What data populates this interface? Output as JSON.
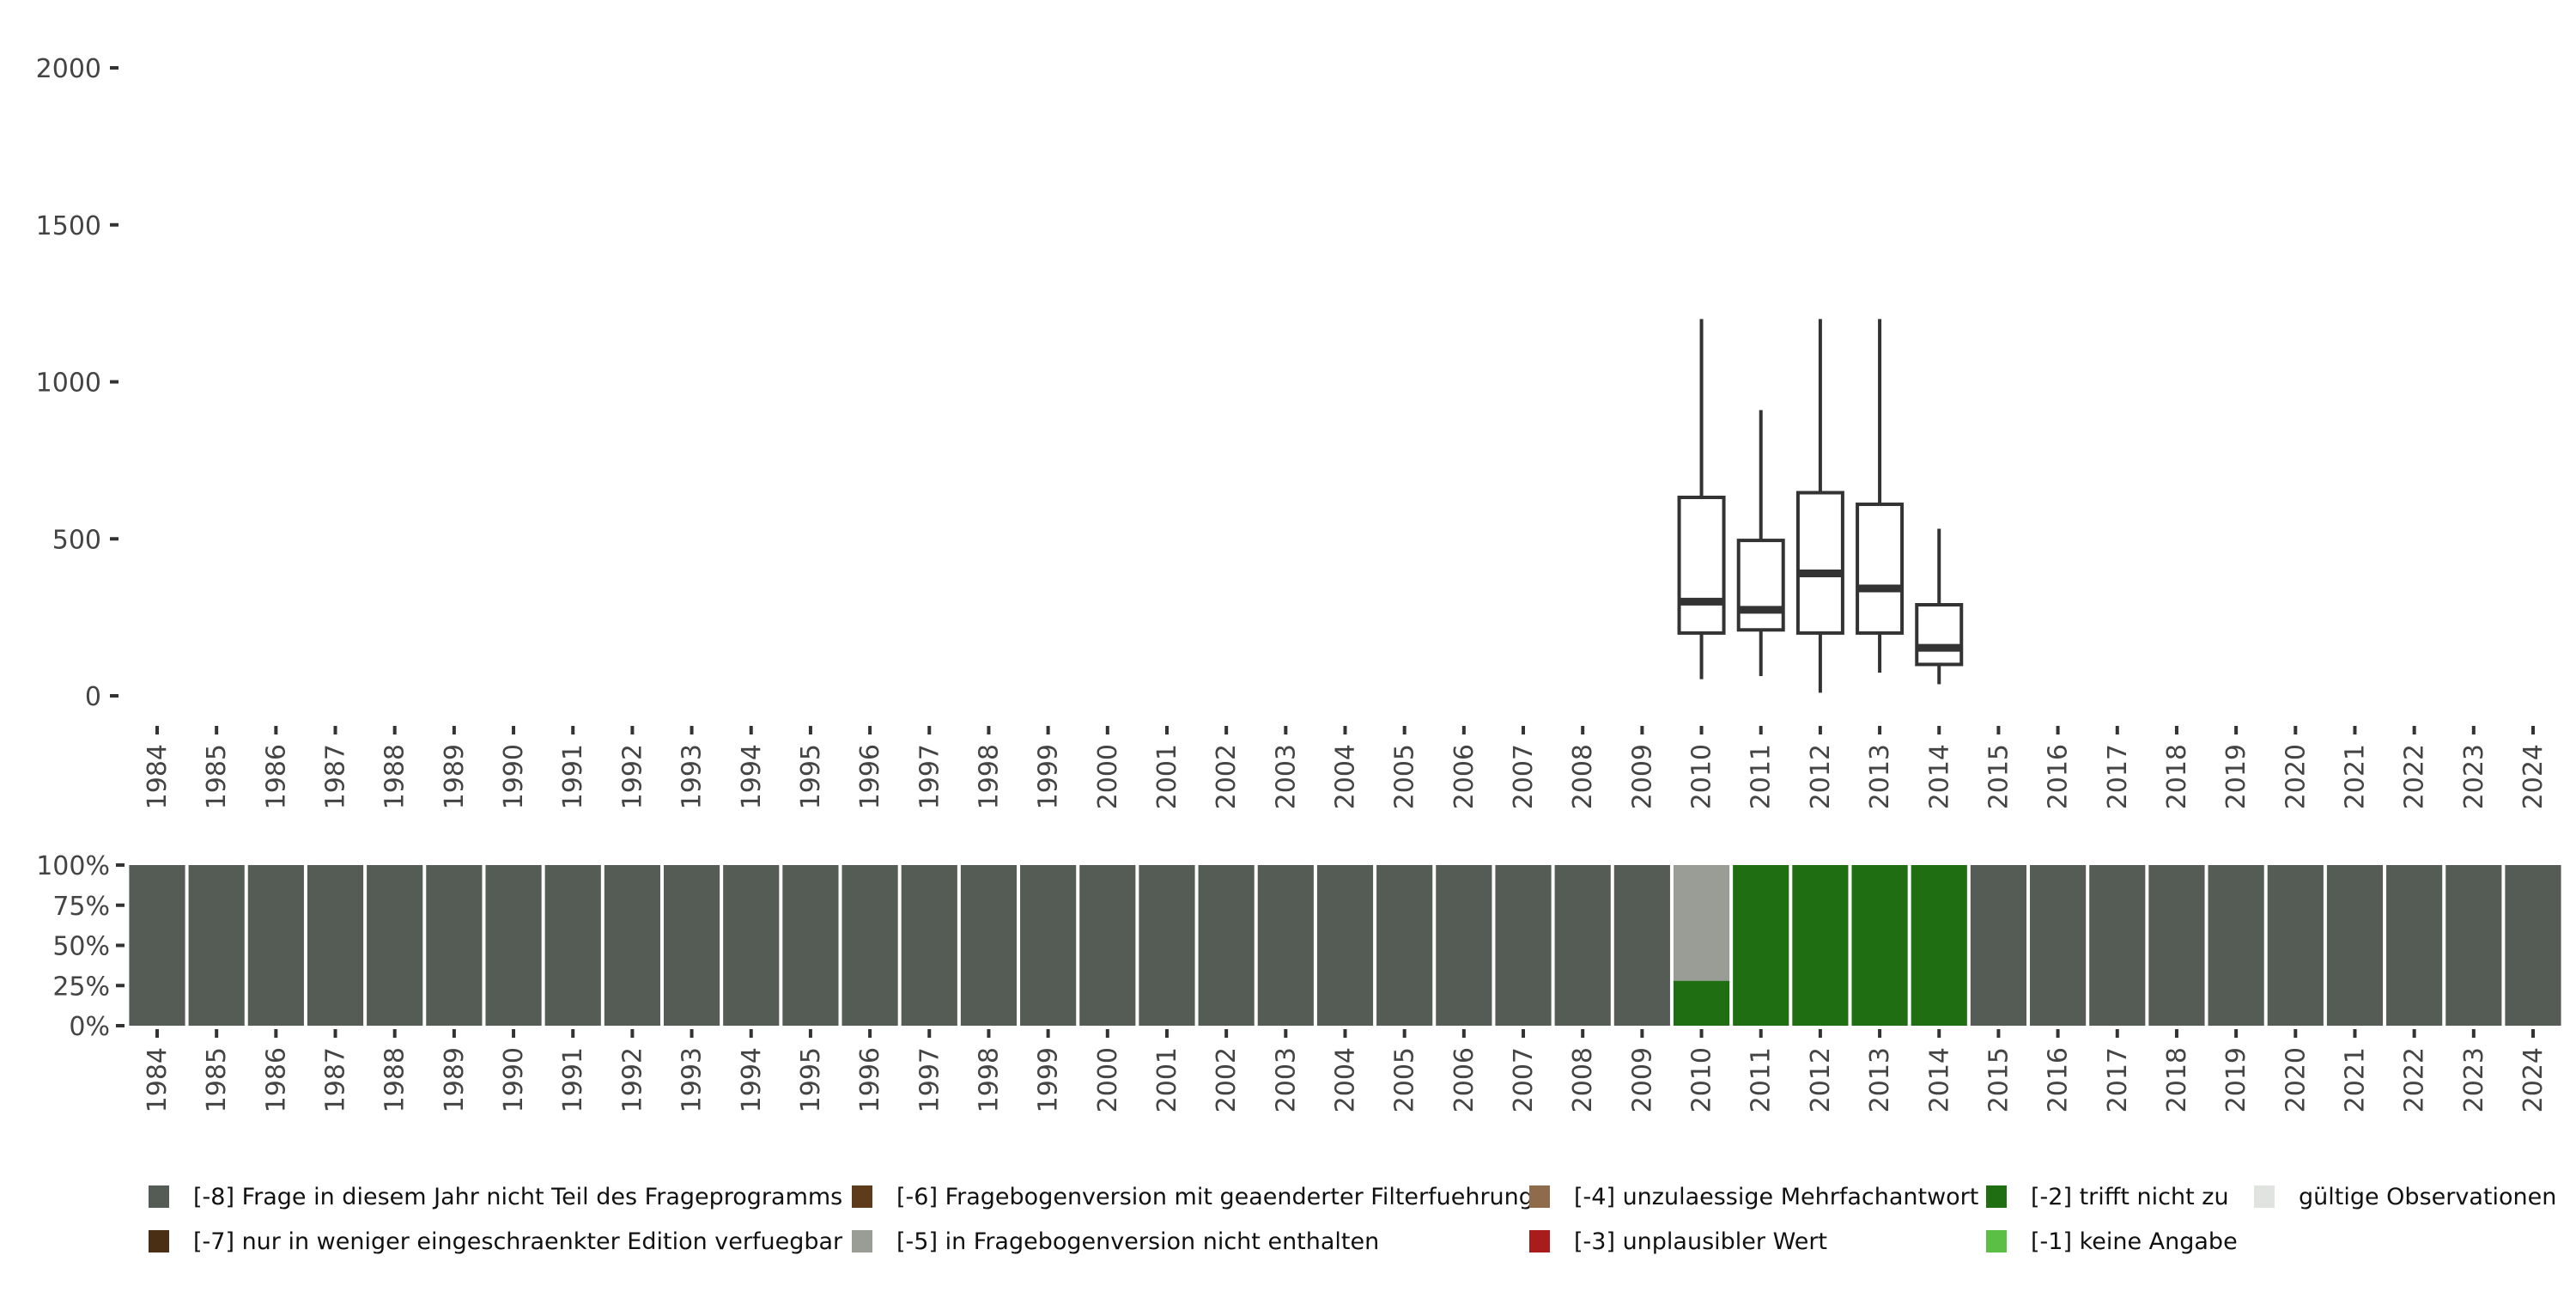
{
  "chart_data": [
    {
      "type": "boxplot",
      "title": "",
      "xlabel": "",
      "ylabel": "",
      "ylim": [
        0,
        2000
      ],
      "y_ticks": [
        "0",
        "500",
        "1000",
        "1500",
        "2000"
      ],
      "y_tick_values": [
        0,
        500,
        1000,
        1500,
        2000
      ],
      "categories": [
        "1984",
        "1985",
        "1986",
        "1987",
        "1988",
        "1989",
        "1990",
        "1991",
        "1992",
        "1993",
        "1994",
        "1995",
        "1996",
        "1997",
        "1998",
        "1999",
        "2000",
        "2001",
        "2002",
        "2003",
        "2004",
        "2005",
        "2006",
        "2007",
        "2008",
        "2009",
        "2010",
        "2011",
        "2012",
        "2013",
        "2014",
        "2015",
        "2016",
        "2017",
        "2018",
        "2019",
        "2020",
        "2021",
        "2022",
        "2023",
        "2024"
      ],
      "boxes": [
        {
          "year": "2010",
          "low": 53,
          "q1": 200,
          "median": 300,
          "q3": 632,
          "high": 1200
        },
        {
          "year": "2011",
          "low": 63,
          "q1": 210,
          "median": 274,
          "q3": 495,
          "high": 910
        },
        {
          "year": "2012",
          "low": 10,
          "q1": 200,
          "median": 390,
          "q3": 647,
          "high": 1200
        },
        {
          "year": "2013",
          "low": 74,
          "q1": 200,
          "median": 342,
          "q3": 610,
          "high": 1200
        },
        {
          "year": "2014",
          "low": 37,
          "q1": 100,
          "median": 153,
          "q3": 290,
          "high": 532
        }
      ]
    },
    {
      "type": "stacked_bar",
      "ylim": [
        0,
        100
      ],
      "y_ticks": [
        "0%",
        "25%",
        "50%",
        "75%",
        "100%"
      ],
      "y_tick_values": [
        0,
        25,
        50,
        75,
        100
      ],
      "categories": [
        "1984",
        "1985",
        "1986",
        "1987",
        "1988",
        "1989",
        "1990",
        "1991",
        "1992",
        "1993",
        "1994",
        "1995",
        "1996",
        "1997",
        "1998",
        "1999",
        "2000",
        "2001",
        "2002",
        "2003",
        "2004",
        "2005",
        "2006",
        "2007",
        "2008",
        "2009",
        "2010",
        "2011",
        "2012",
        "2013",
        "2014",
        "2015",
        "2016",
        "2017",
        "2018",
        "2019",
        "2020",
        "2021",
        "2022",
        "2023",
        "2024"
      ],
      "series": [
        {
          "name": "[-2] trifft nicht zu",
          "key": "m2",
          "values": [
            0,
            0,
            0,
            0,
            0,
            0,
            0,
            0,
            0,
            0,
            0,
            0,
            0,
            0,
            0,
            0,
            0,
            0,
            0,
            0,
            0,
            0,
            0,
            0,
            0,
            0,
            28,
            100,
            100,
            100,
            100,
            0,
            0,
            0,
            0,
            0,
            0,
            0,
            0,
            0,
            0
          ]
        },
        {
          "name": "[-5] in Fragebogenversion nicht enthalten",
          "key": "m5",
          "values": [
            0,
            0,
            0,
            0,
            0,
            0,
            0,
            0,
            0,
            0,
            0,
            0,
            0,
            0,
            0,
            0,
            0,
            0,
            0,
            0,
            0,
            0,
            0,
            0,
            0,
            0,
            72,
            0,
            0,
            0,
            0,
            0,
            0,
            0,
            0,
            0,
            0,
            0,
            0,
            0,
            0
          ]
        },
        {
          "name": "[-8] Frage in diesem Jahr nicht Teil des Frageprogramms",
          "key": "m8",
          "values": [
            100,
            100,
            100,
            100,
            100,
            100,
            100,
            100,
            100,
            100,
            100,
            100,
            100,
            100,
            100,
            100,
            100,
            100,
            100,
            100,
            100,
            100,
            100,
            100,
            100,
            100,
            0,
            0,
            0,
            0,
            0,
            100,
            100,
            100,
            100,
            100,
            100,
            100,
            100,
            100,
            100
          ]
        }
      ],
      "legend_position": "bottom",
      "legend": [
        {
          "label": "[-8] Frage in diesem Jahr nicht Teil des Frageprogramms",
          "color": "#555b55"
        },
        {
          "label": "[-7] nur in weniger eingeschraenkter Edition verfuegbar",
          "color": "#4b2f15"
        },
        {
          "label": "[-6] Fragebogenversion mit geaenderter Filterfuehrung",
          "color": "#5e3b1a"
        },
        {
          "label": "[-5] in Fragebogenversion nicht enthalten",
          "color": "#999d95"
        },
        {
          "label": "[-4] unzulaessige Mehrfachantwort",
          "color": "#8d6b4b"
        },
        {
          "label": "[-3] unplausibler Wert",
          "color": "#a81c1c"
        },
        {
          "label": "[-2] trifft nicht zu",
          "color": "#1f6e12"
        },
        {
          "label": "[-1] keine Angabe",
          "color": "#5bbf45"
        },
        {
          "label": "gültige Observationen",
          "color": "#e0e3df"
        }
      ]
    }
  ]
}
